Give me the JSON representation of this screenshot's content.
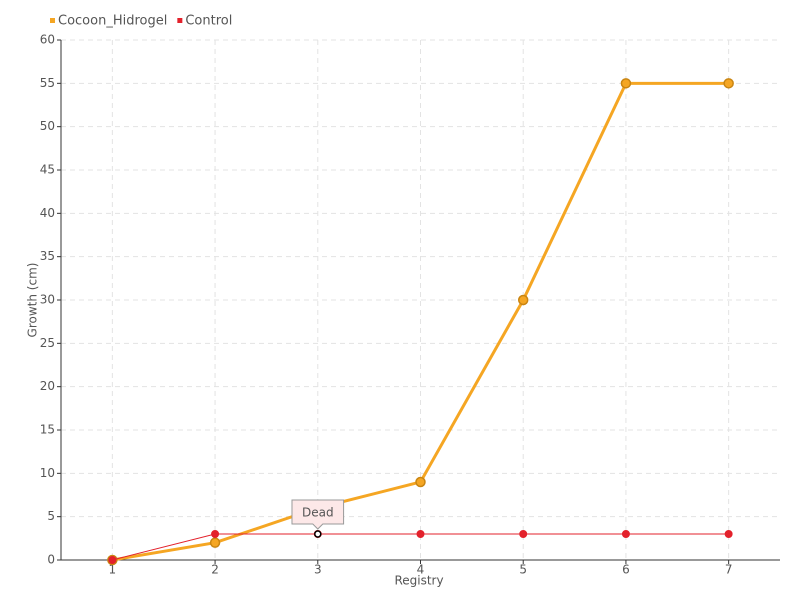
{
  "chart_data": {
    "type": "line",
    "x_label": "Registry",
    "y_label": "Growth (cm)",
    "categories": [
      "1",
      "2",
      "3",
      "4",
      "5",
      "6",
      "7"
    ],
    "series": [
      {
        "name": "Cocoon_Hidrogel",
        "color": "#f5a623",
        "values": [
          0,
          2,
          6,
          9,
          30,
          55,
          55
        ]
      },
      {
        "name": "Control",
        "color": "#e3212b",
        "values": [
          0,
          3,
          3,
          3,
          3,
          3,
          3
        ]
      }
    ],
    "annotations": [
      {
        "label": "Dead",
        "x": "3",
        "y": 3
      }
    ],
    "ylim": [
      0,
      60
    ],
    "yticks": [
      0,
      5,
      10,
      15,
      20,
      25,
      30,
      35,
      40,
      45,
      50,
      55,
      60
    ],
    "grid": true,
    "legend": "top-left"
  }
}
